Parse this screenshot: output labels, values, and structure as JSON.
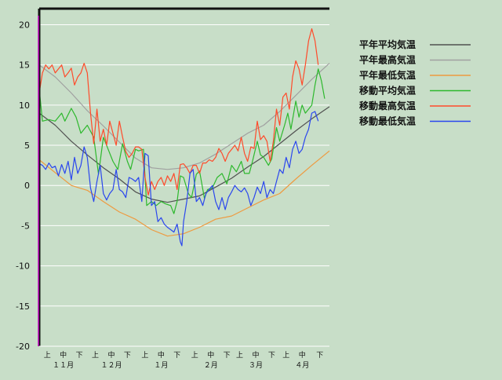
{
  "chart_data": {
    "type": "line",
    "title": "",
    "xlabel": "",
    "ylabel": "",
    "ylim": [
      -20,
      22
    ],
    "yticks": [
      20,
      15,
      10,
      5,
      0,
      -5,
      -10,
      -15,
      -20
    ],
    "grid": true,
    "legend_position": "top-right",
    "x_unit": "day index (Nov 1 = 0)",
    "x_range": [
      0,
      181
    ],
    "xtick_labels": [
      {
        "label": "上",
        "x": 5
      },
      {
        "label": "中",
        "x": 15
      },
      {
        "label": "下",
        "x": 25
      },
      {
        "label": "上",
        "x": 35
      },
      {
        "label": "中",
        "x": 45
      },
      {
        "label": "下",
        "x": 55
      },
      {
        "label": "上",
        "x": 66
      },
      {
        "label": "中",
        "x": 76
      },
      {
        "label": "下",
        "x": 86
      },
      {
        "label": "上",
        "x": 97
      },
      {
        "label": "中",
        "x": 107
      },
      {
        "label": "下",
        "x": 117
      },
      {
        "label": "上",
        "x": 125
      },
      {
        "label": "中",
        "x": 135
      },
      {
        "label": "下",
        "x": 145
      },
      {
        "label": "上",
        "x": 154
      },
      {
        "label": "中",
        "x": 164
      },
      {
        "label": "下",
        "x": 175
      }
    ],
    "month_labels": [
      {
        "label": "１１月",
        "x": 15
      },
      {
        "label": "１２月",
        "x": 45
      },
      {
        "label": "１月",
        "x": 76
      },
      {
        "label": "２月",
        "x": 107
      },
      {
        "label": "３月",
        "x": 135
      },
      {
        "label": "４月",
        "x": 164
      }
    ],
    "series": [
      {
        "name": "平年平均気温",
        "color": "#505050",
        "points": [
          [
            0,
            9
          ],
          [
            10,
            7.5
          ],
          [
            20,
            5.5
          ],
          [
            30,
            3.8
          ],
          [
            40,
            2.2
          ],
          [
            50,
            0.8
          ],
          [
            60,
            -0.8
          ],
          [
            70,
            -1.7
          ],
          [
            80,
            -2.1
          ],
          [
            90,
            -1.7
          ],
          [
            100,
            -1.3
          ],
          [
            110,
            -0.2
          ],
          [
            120,
            0.9
          ],
          [
            130,
            2.3
          ],
          [
            140,
            3.6
          ],
          [
            150,
            5.2
          ],
          [
            160,
            6.8
          ],
          [
            170,
            8.3
          ],
          [
            181,
            9.8
          ]
        ]
      },
      {
        "name": "平年最高気温",
        "color": "#a0a0a0",
        "points": [
          [
            0,
            15
          ],
          [
            10,
            13.5
          ],
          [
            20,
            11.5
          ],
          [
            30,
            9.3
          ],
          [
            40,
            7.4
          ],
          [
            50,
            5.4
          ],
          [
            60,
            3.4
          ],
          [
            70,
            2.2
          ],
          [
            80,
            2
          ],
          [
            90,
            2.2
          ],
          [
            100,
            2.8
          ],
          [
            110,
            3.9
          ],
          [
            120,
            5.2
          ],
          [
            130,
            6.5
          ],
          [
            140,
            7.5
          ],
          [
            150,
            9.2
          ],
          [
            160,
            11.2
          ],
          [
            170,
            13.2
          ],
          [
            181,
            15.2
          ]
        ]
      },
      {
        "name": "平年最低気温",
        "color": "#ee9a40",
        "points": [
          [
            0,
            3.2
          ],
          [
            10,
            1.6
          ],
          [
            20,
            0
          ],
          [
            30,
            -0.6
          ],
          [
            40,
            -2
          ],
          [
            50,
            -3.3
          ],
          [
            60,
            -4.2
          ],
          [
            70,
            -5.5
          ],
          [
            80,
            -6.3
          ],
          [
            90,
            -6
          ],
          [
            100,
            -5.2
          ],
          [
            110,
            -4.2
          ],
          [
            120,
            -3.8
          ],
          [
            130,
            -2.8
          ],
          [
            140,
            -1.8
          ],
          [
            150,
            -1
          ],
          [
            160,
            0.8
          ],
          [
            170,
            2.5
          ],
          [
            181,
            4.3
          ]
        ]
      },
      {
        "name": "移動平均気温",
        "color": "#2db82d",
        "points": [
          [
            0,
            12
          ],
          [
            2,
            8
          ],
          [
            6,
            8.2
          ],
          [
            10,
            8
          ],
          [
            14,
            9
          ],
          [
            16,
            8
          ],
          [
            20,
            9.6
          ],
          [
            23,
            8.5
          ],
          [
            26,
            6.5
          ],
          [
            30,
            7.5
          ],
          [
            34,
            6
          ],
          [
            37,
            1.4
          ],
          [
            40,
            6
          ],
          [
            43,
            4.5
          ],
          [
            46,
            3
          ],
          [
            49,
            2
          ],
          [
            52,
            5.2
          ],
          [
            55,
            3
          ],
          [
            57,
            2
          ],
          [
            60,
            4.5
          ],
          [
            62,
            4.3
          ],
          [
            65,
            4.5
          ],
          [
            67,
            -2.5
          ],
          [
            70,
            -2
          ],
          [
            73,
            -2.5
          ],
          [
            76,
            -2
          ],
          [
            79,
            -2.3
          ],
          [
            82,
            -2.5
          ],
          [
            84,
            -3.5
          ],
          [
            86,
            -2
          ],
          [
            88,
            1.2
          ],
          [
            90,
            1
          ],
          [
            93,
            -1
          ],
          [
            95,
            -1.5
          ],
          [
            98,
            1.4
          ],
          [
            100,
            1.8
          ],
          [
            103,
            -1.6
          ],
          [
            105,
            -0.5
          ],
          [
            108,
            -0.3
          ],
          [
            111,
            1
          ],
          [
            114,
            1.5
          ],
          [
            117,
            0.2
          ],
          [
            120,
            2.5
          ],
          [
            123,
            1.7
          ],
          [
            126,
            3
          ],
          [
            128,
            1.5
          ],
          [
            131,
            1.5
          ],
          [
            133,
            3
          ],
          [
            136,
            5.5
          ],
          [
            138,
            3.8
          ],
          [
            140,
            3.5
          ],
          [
            143,
            2.5
          ],
          [
            145,
            3.3
          ],
          [
            148,
            7.2
          ],
          [
            150,
            5.5
          ],
          [
            153,
            7.5
          ],
          [
            155,
            9
          ],
          [
            157,
            7
          ],
          [
            160,
            10.5
          ],
          [
            162,
            8.5
          ],
          [
            164,
            10
          ],
          [
            166,
            9
          ],
          [
            168,
            9.5
          ],
          [
            170,
            10
          ],
          [
            172,
            12.5
          ],
          [
            174,
            14.5
          ],
          [
            176,
            13
          ],
          [
            178,
            10.8
          ]
        ]
      },
      {
        "name": "移動最高気温",
        "color": "#ff4a2a",
        "points": [
          [
            0,
            11.5
          ],
          [
            2,
            14
          ],
          [
            4,
            15
          ],
          [
            6,
            14.5
          ],
          [
            8,
            15
          ],
          [
            10,
            14
          ],
          [
            12,
            14.5
          ],
          [
            14,
            15
          ],
          [
            16,
            13.5
          ],
          [
            18,
            14
          ],
          [
            20,
            14.6
          ],
          [
            22,
            12.5
          ],
          [
            24,
            13.5
          ],
          [
            26,
            14
          ],
          [
            28,
            15.2
          ],
          [
            30,
            14
          ],
          [
            32,
            9
          ],
          [
            34,
            5.2
          ],
          [
            36,
            9.5
          ],
          [
            38,
            5.5
          ],
          [
            40,
            7
          ],
          [
            42,
            5
          ],
          [
            44,
            8
          ],
          [
            46,
            6.5
          ],
          [
            48,
            5
          ],
          [
            50,
            8
          ],
          [
            52,
            6
          ],
          [
            54,
            4.2
          ],
          [
            56,
            3.5
          ],
          [
            58,
            4
          ],
          [
            60,
            4.8
          ],
          [
            62,
            4.8
          ],
          [
            64,
            4.5
          ],
          [
            66,
            1
          ],
          [
            68,
            -1.2
          ],
          [
            70,
            0.5
          ],
          [
            72,
            -0.5
          ],
          [
            74,
            0.5
          ],
          [
            76,
            1
          ],
          [
            78,
            0
          ],
          [
            80,
            1.2
          ],
          [
            82,
            0.5
          ],
          [
            84,
            1.5
          ],
          [
            86,
            -0.5
          ],
          [
            88,
            2.6
          ],
          [
            90,
            2.7
          ],
          [
            92,
            2.2
          ],
          [
            94,
            1.5
          ],
          [
            96,
            2.5
          ],
          [
            98,
            2.5
          ],
          [
            100,
            1.5
          ],
          [
            102,
            2.8
          ],
          [
            104,
            2.8
          ],
          [
            106,
            3.2
          ],
          [
            108,
            3
          ],
          [
            110,
            3.5
          ],
          [
            112,
            4.6
          ],
          [
            114,
            4
          ],
          [
            116,
            3
          ],
          [
            118,
            4
          ],
          [
            120,
            4.5
          ],
          [
            122,
            5
          ],
          [
            124,
            4.3
          ],
          [
            126,
            6
          ],
          [
            128,
            4
          ],
          [
            130,
            3
          ],
          [
            132,
            4.8
          ],
          [
            134,
            4.6
          ],
          [
            136,
            8
          ],
          [
            138,
            5.7
          ],
          [
            140,
            6.2
          ],
          [
            142,
            5.5
          ],
          [
            144,
            3
          ],
          [
            146,
            5.5
          ],
          [
            148,
            9.5
          ],
          [
            150,
            7.5
          ],
          [
            152,
            11
          ],
          [
            154,
            11.5
          ],
          [
            156,
            9.5
          ],
          [
            158,
            13.5
          ],
          [
            160,
            15.5
          ],
          [
            162,
            14.5
          ],
          [
            164,
            12.5
          ],
          [
            166,
            15
          ],
          [
            168,
            18
          ],
          [
            170,
            19.5
          ],
          [
            172,
            18
          ],
          [
            174,
            15
          ]
        ]
      },
      {
        "name": "移動最低気温",
        "color": "#2a46ee",
        "points": [
          [
            0,
            2.7
          ],
          [
            2,
            2.5
          ],
          [
            4,
            2
          ],
          [
            6,
            2.8
          ],
          [
            8,
            2.2
          ],
          [
            10,
            2.4
          ],
          [
            12,
            1.2
          ],
          [
            14,
            2.6
          ],
          [
            16,
            1.5
          ],
          [
            18,
            3
          ],
          [
            20,
            0.7
          ],
          [
            22,
            3.5
          ],
          [
            24,
            1.5
          ],
          [
            26,
            2.5
          ],
          [
            28,
            4.8
          ],
          [
            30,
            3.5
          ],
          [
            32,
            -0.3
          ],
          [
            34,
            -2
          ],
          [
            36,
            0.5
          ],
          [
            38,
            2.5
          ],
          [
            40,
            -1
          ],
          [
            42,
            -1.8
          ],
          [
            44,
            -1
          ],
          [
            46,
            -0.5
          ],
          [
            48,
            2
          ],
          [
            50,
            -0.5
          ],
          [
            52,
            -0.8
          ],
          [
            54,
            -1.5
          ],
          [
            56,
            1
          ],
          [
            58,
            0.8
          ],
          [
            60,
            0.5
          ],
          [
            62,
            1
          ],
          [
            64,
            -2
          ],
          [
            66,
            4
          ],
          [
            68,
            3.7
          ],
          [
            70,
            -2.5
          ],
          [
            72,
            -2
          ],
          [
            74,
            -4.5
          ],
          [
            76,
            -4
          ],
          [
            78,
            -4.8
          ],
          [
            80,
            -5.2
          ],
          [
            82,
            -5.5
          ],
          [
            84,
            -5.8
          ],
          [
            86,
            -4.8
          ],
          [
            88,
            -7
          ],
          [
            89,
            -7.5
          ],
          [
            90,
            -4.5
          ],
          [
            92,
            -2
          ],
          [
            94,
            1.5
          ],
          [
            96,
            2
          ],
          [
            98,
            -2
          ],
          [
            100,
            -1.5
          ],
          [
            102,
            -2.5
          ],
          [
            104,
            -1
          ],
          [
            106,
            -0.5
          ],
          [
            108,
            0
          ],
          [
            110,
            -2
          ],
          [
            112,
            -3
          ],
          [
            114,
            -1.5
          ],
          [
            116,
            -3
          ],
          [
            118,
            -1.5
          ],
          [
            120,
            -0.8
          ],
          [
            122,
            0
          ],
          [
            124,
            -0.5
          ],
          [
            126,
            -0.8
          ],
          [
            128,
            -0.3
          ],
          [
            130,
            -1
          ],
          [
            132,
            -2.5
          ],
          [
            134,
            -1.5
          ],
          [
            136,
            -0.2
          ],
          [
            138,
            -1
          ],
          [
            140,
            0.5
          ],
          [
            142,
            -1.5
          ],
          [
            144,
            -0.5
          ],
          [
            146,
            -1
          ],
          [
            148,
            0.5
          ],
          [
            150,
            2
          ],
          [
            152,
            1.5
          ],
          [
            154,
            3.5
          ],
          [
            156,
            2.2
          ],
          [
            158,
            4.5
          ],
          [
            160,
            5.5
          ],
          [
            162,
            4
          ],
          [
            164,
            4.5
          ],
          [
            166,
            6
          ],
          [
            168,
            7
          ],
          [
            170,
            9
          ],
          [
            172,
            9.2
          ],
          [
            174,
            8
          ]
        ]
      }
    ]
  }
}
